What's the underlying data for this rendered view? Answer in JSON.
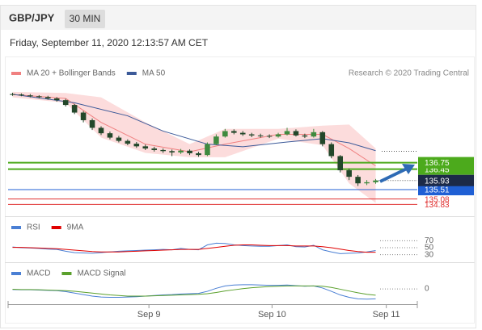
{
  "header": {
    "symbol": "GBP/JPY",
    "timeframe": "30 MIN",
    "datetime": "Friday, September 11, 2020 12:13:57 AM CET"
  },
  "chart_data": [
    {
      "type": "candlestick",
      "credit": "Research © 2020 Trading Central",
      "open": [
        139.9,
        139.88,
        139.84,
        139.8,
        139.76,
        139.7,
        139.62,
        139.4,
        139.05,
        138.7,
        138.35,
        138.1,
        137.9,
        137.75,
        137.62,
        137.5,
        137.4,
        137.33,
        137.28,
        137.22,
        137.3,
        137.18,
        137.1,
        137.6,
        137.95,
        138.2,
        138.12,
        138.05,
        138.0,
        137.98,
        137.95,
        138.05,
        138.2,
        138.0,
        137.95,
        138.15,
        137.6,
        137.05,
        136.4,
        136.1,
        135.8,
        135.85
      ],
      "high": [
        139.96,
        139.93,
        139.9,
        139.85,
        139.82,
        139.76,
        139.68,
        139.45,
        139.12,
        138.78,
        138.42,
        138.18,
        137.98,
        137.82,
        137.7,
        137.58,
        137.48,
        137.4,
        137.35,
        137.38,
        137.36,
        137.25,
        137.68,
        138.05,
        138.3,
        138.28,
        138.2,
        138.12,
        138.08,
        138.05,
        138.12,
        138.35,
        138.28,
        138.08,
        138.3,
        138.2,
        137.68,
        137.1,
        136.48,
        136.18,
        135.95,
        136.0
      ],
      "low": [
        139.82,
        139.8,
        139.75,
        139.7,
        139.64,
        139.55,
        139.33,
        138.98,
        138.6,
        138.25,
        138.02,
        137.82,
        137.68,
        137.55,
        137.43,
        137.33,
        137.26,
        137.2,
        137.05,
        137.15,
        137.1,
        137.02,
        137.05,
        137.55,
        137.9,
        138.05,
        137.98,
        137.92,
        137.9,
        137.88,
        137.9,
        138.0,
        137.95,
        137.88,
        137.9,
        137.5,
        136.95,
        136.3,
        135.95,
        135.68,
        135.72,
        135.78
      ],
      "close": [
        139.88,
        139.84,
        139.8,
        139.76,
        139.7,
        139.62,
        139.4,
        139.05,
        138.7,
        138.35,
        138.1,
        137.9,
        137.75,
        137.62,
        137.5,
        137.4,
        137.33,
        137.28,
        137.22,
        137.3,
        137.18,
        137.1,
        137.6,
        137.95,
        138.2,
        138.12,
        138.05,
        138.0,
        137.98,
        137.95,
        138.05,
        138.2,
        138.0,
        137.95,
        138.15,
        137.6,
        137.05,
        136.4,
        136.1,
        135.8,
        135.85,
        135.93
      ],
      "up_color": "#3f8a3f",
      "down_color": "#23472a",
      "overlays": [
        {
          "name": "MA 20 + Bollinger Bands",
          "color": "#f08080",
          "band_color": "#fbd3d3",
          "x": [
            0,
            6,
            10,
            15,
            20,
            24,
            30,
            35,
            38,
            41
          ],
          "values": [
            139.88,
            139.7,
            138.6,
            137.6,
            137.25,
            137.6,
            138.05,
            138.05,
            137.4,
            136.6
          ],
          "upper": [
            140.0,
            139.95,
            139.75,
            138.6,
            137.6,
            138.3,
            138.3,
            138.45,
            138.5,
            137.4
          ],
          "lower": [
            139.75,
            139.5,
            137.9,
            137.2,
            137.0,
            137.0,
            137.85,
            137.55,
            135.8,
            134.9
          ]
        },
        {
          "name": "MA 50",
          "color": "#3c5a99",
          "x": [
            0,
            7,
            13,
            17,
            22,
            26,
            31,
            35,
            38,
            41
          ],
          "values": [
            139.89,
            139.5,
            138.9,
            138.2,
            137.6,
            137.48,
            137.7,
            137.85,
            137.66,
            137.3
          ]
        }
      ],
      "levels": [
        {
          "value": 135.08,
          "color": "#e03030",
          "box": false,
          "line": "solid"
        },
        {
          "value": 134.83,
          "color": "#e03030",
          "box": false,
          "line": "solid"
        },
        {
          "value": 136.45,
          "color": "#4caa1c",
          "box": true,
          "line": "solid"
        },
        {
          "value": 136.75,
          "color": "#4caa1c",
          "box": true,
          "line": "solid"
        },
        {
          "value": 135.51,
          "color": "#1f5fd4",
          "box": true,
          "line": "solid"
        },
        {
          "value": 135.93,
          "color": "#1c2a48",
          "box": true,
          "line": "dotted"
        }
      ],
      "ylim": [
        134.4,
        140.7
      ],
      "xticks": [
        {
          "value": 15.4,
          "label": "Sep 9"
        },
        {
          "value": 29.3,
          "label": "Sep 10"
        },
        {
          "value": 42.2,
          "label": "Sep 11"
        }
      ]
    },
    {
      "type": "line",
      "series": [
        {
          "name": "RSI",
          "color": "#4a7fd4",
          "values": [
            52,
            50,
            49,
            48,
            46,
            45,
            40,
            36,
            35,
            34,
            36,
            38,
            40,
            41,
            42,
            43,
            44,
            45,
            44,
            48,
            45,
            44,
            58,
            63,
            62,
            58,
            56,
            55,
            54,
            54,
            56,
            58,
            53,
            52,
            57,
            44,
            38,
            33,
            34,
            35,
            38,
            42
          ]
        },
        {
          "name": "9MA",
          "color": "#e00000",
          "values": [
            51,
            51,
            50,
            49,
            48,
            47,
            45,
            43,
            41,
            39,
            38,
            38,
            38,
            39,
            40,
            41,
            42,
            43,
            44,
            45,
            45,
            45,
            48,
            51,
            54,
            57,
            58,
            58,
            57,
            56,
            56,
            56,
            55,
            55,
            55,
            53,
            50,
            46,
            42,
            39,
            37,
            37
          ]
        }
      ],
      "ylim": [
        20,
        80
      ],
      "yticks": [
        70,
        50,
        30
      ]
    },
    {
      "type": "line",
      "series": [
        {
          "name": "MACD",
          "color": "#4a7fd4",
          "values": [
            -0.02,
            -0.03,
            -0.03,
            -0.04,
            -0.05,
            -0.06,
            -0.09,
            -0.14,
            -0.19,
            -0.24,
            -0.27,
            -0.28,
            -0.28,
            -0.27,
            -0.26,
            -0.24,
            -0.22,
            -0.2,
            -0.19,
            -0.17,
            -0.16,
            -0.15,
            -0.08,
            0.02,
            0.1,
            0.13,
            0.14,
            0.14,
            0.13,
            0.12,
            0.12,
            0.13,
            0.11,
            0.09,
            0.1,
            0.03,
            -0.08,
            -0.2,
            -0.28,
            -0.33,
            -0.34,
            -0.33
          ]
        },
        {
          "name": "MACD Signal",
          "color": "#5aa02c",
          "values": [
            -0.01,
            -0.02,
            -0.02,
            -0.03,
            -0.04,
            -0.05,
            -0.06,
            -0.08,
            -0.11,
            -0.14,
            -0.17,
            -0.2,
            -0.22,
            -0.24,
            -0.24,
            -0.24,
            -0.23,
            -0.22,
            -0.21,
            -0.2,
            -0.19,
            -0.18,
            -0.16,
            -0.12,
            -0.07,
            -0.03,
            0.01,
            0.04,
            0.06,
            0.08,
            0.09,
            0.1,
            0.1,
            0.1,
            0.1,
            0.09,
            0.05,
            -0.01,
            -0.07,
            -0.13,
            -0.18,
            -0.21
          ]
        }
      ],
      "ylim": [
        -0.4,
        0.35
      ],
      "yticks": [
        0
      ]
    }
  ]
}
